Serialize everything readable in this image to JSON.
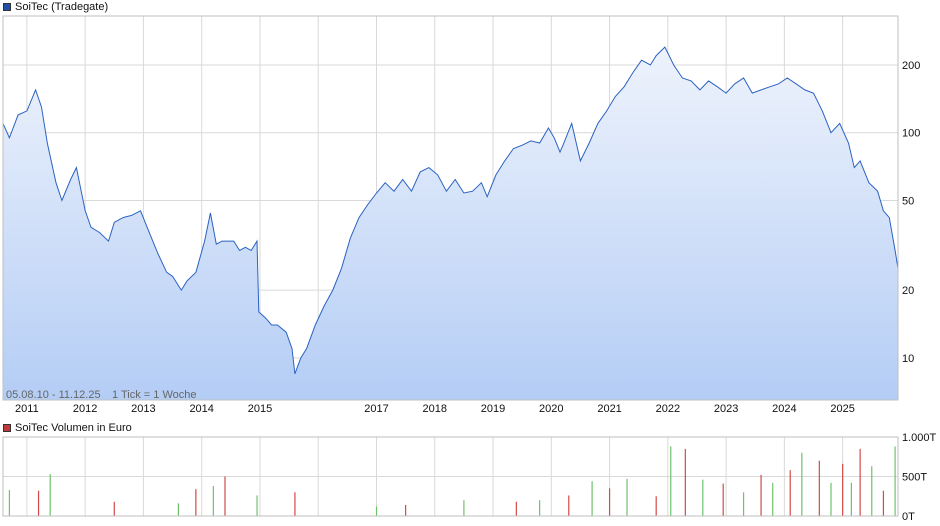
{
  "legend_top": {
    "label": "SoiTec (Tradegate)",
    "color": "#1f4fa8"
  },
  "legend_bottom": {
    "label": "SoiTec Volumen in Euro",
    "color": "#c0393b"
  },
  "period_label": "05.08.10 - 11.12.25",
  "tick_label": "1 Tick = 1 Woche",
  "colors": {
    "line": "#2b62c1",
    "fill_top": "#eef3fc",
    "fill_bottom": "#b4cdf5",
    "vol_up": "#6ec26b",
    "vol_down": "#d24a4a",
    "grid": "#d9d9d9"
  },
  "chart_data": [
    {
      "type": "area",
      "title": "SoiTec (Tradegate)",
      "yscale": "log",
      "ylim": [
        6.5,
        330
      ],
      "xlim": [
        2010.59,
        2025.95
      ],
      "y_ticks": [
        10,
        20,
        50,
        100,
        200
      ],
      "y_tick_labels": [
        "10",
        "20",
        "50",
        "100",
        "200"
      ],
      "x_ticks": [
        2011,
        2012,
        2013,
        2014,
        2015,
        2016,
        2017,
        2018,
        2019,
        2020,
        2021,
        2022,
        2023,
        2024,
        2025
      ],
      "x_tick_labels": [
        "2011",
        "2012",
        "2013",
        "2014",
        "2015",
        "",
        "2017",
        "2018",
        "2019",
        "2020",
        "2021",
        "2022",
        "2023",
        "2024",
        "2025"
      ],
      "grid": true,
      "x": [
        2010.59,
        2010.7,
        2010.85,
        2011.0,
        2011.15,
        2011.25,
        2011.35,
        2011.5,
        2011.6,
        2011.75,
        2011.85,
        2012.0,
        2012.1,
        2012.25,
        2012.4,
        2012.5,
        2012.65,
        2012.8,
        2012.95,
        2013.1,
        2013.25,
        2013.4,
        2013.5,
        2013.65,
        2013.75,
        2013.9,
        2014.05,
        2014.15,
        2014.25,
        2014.35,
        2014.45,
        2014.55,
        2014.65,
        2014.75,
        2014.85,
        2014.95,
        2014.98,
        2015.1,
        2015.2,
        2015.3,
        2015.45,
        2015.55,
        2015.6,
        2015.7,
        2015.8,
        2015.95,
        2016.1,
        2016.25,
        2016.4,
        2016.55,
        2016.7,
        2016.85,
        2017.0,
        2017.15,
        2017.3,
        2017.45,
        2017.6,
        2017.75,
        2017.9,
        2018.05,
        2018.2,
        2018.35,
        2018.5,
        2018.65,
        2018.8,
        2018.9,
        2019.05,
        2019.2,
        2019.35,
        2019.5,
        2019.65,
        2019.8,
        2019.95,
        2020.05,
        2020.15,
        2020.2,
        2020.35,
        2020.5,
        2020.65,
        2020.8,
        2020.95,
        2021.1,
        2021.25,
        2021.4,
        2021.55,
        2021.7,
        2021.8,
        2021.95,
        2022.1,
        2022.25,
        2022.4,
        2022.55,
        2022.7,
        2022.85,
        2023.0,
        2023.15,
        2023.3,
        2023.45,
        2023.6,
        2023.75,
        2023.9,
        2024.05,
        2024.2,
        2024.35,
        2024.5,
        2024.65,
        2024.8,
        2024.95,
        2025.1,
        2025.2,
        2025.3,
        2025.45,
        2025.6,
        2025.7,
        2025.8,
        2025.9,
        2025.95
      ],
      "values": [
        110,
        95,
        120,
        125,
        155,
        130,
        90,
        60,
        50,
        62,
        70,
        45,
        38,
        36,
        33,
        40,
        42,
        43,
        45,
        36,
        29,
        24,
        23,
        20,
        22,
        24,
        33,
        44,
        32,
        33,
        33,
        33,
        30,
        31,
        30,
        33,
        16,
        15,
        14,
        14,
        13,
        11,
        8.5,
        10,
        11,
        14,
        17,
        20,
        25,
        34,
        42,
        48,
        54,
        60,
        55,
        62,
        55,
        67,
        70,
        65,
        55,
        62,
        54,
        55,
        60,
        52,
        65,
        75,
        85,
        88,
        92,
        90,
        105,
        95,
        82,
        88,
        110,
        75,
        90,
        110,
        125,
        145,
        160,
        185,
        210,
        200,
        220,
        240,
        200,
        175,
        170,
        155,
        170,
        160,
        150,
        165,
        175,
        150,
        155,
        160,
        165,
        175,
        165,
        155,
        150,
        125,
        100,
        110,
        90,
        70,
        75,
        60,
        55,
        45,
        42,
        30,
        25
      ]
    },
    {
      "type": "bar",
      "title": "SoiTec Volumen in Euro",
      "ylim": [
        0,
        1000
      ],
      "y_ticks": [
        0,
        500,
        1000
      ],
      "y_tick_labels": [
        "0T",
        "500T",
        "1.000T"
      ],
      "grid": true,
      "x": [
        2010.7,
        2011.2,
        2011.4,
        2012.5,
        2013.6,
        2013.9,
        2014.2,
        2014.4,
        2014.95,
        2015.6,
        2017.0,
        2017.5,
        2018.5,
        2019.4,
        2019.8,
        2020.3,
        2020.7,
        2021.0,
        2021.3,
        2021.8,
        2022.05,
        2022.3,
        2022.6,
        2022.95,
        2023.3,
        2023.6,
        2023.8,
        2024.1,
        2024.3,
        2024.6,
        2024.8,
        2025.0,
        2025.15,
        2025.3,
        2025.5,
        2025.7,
        2025.9
      ],
      "values": [
        330,
        320,
        530,
        180,
        160,
        340,
        380,
        500,
        260,
        300,
        120,
        140,
        200,
        180,
        200,
        260,
        440,
        350,
        470,
        250,
        880,
        850,
        460,
        410,
        300,
        520,
        420,
        580,
        800,
        700,
        420,
        660,
        420,
        850,
        630,
        320,
        880
      ]
    }
  ]
}
